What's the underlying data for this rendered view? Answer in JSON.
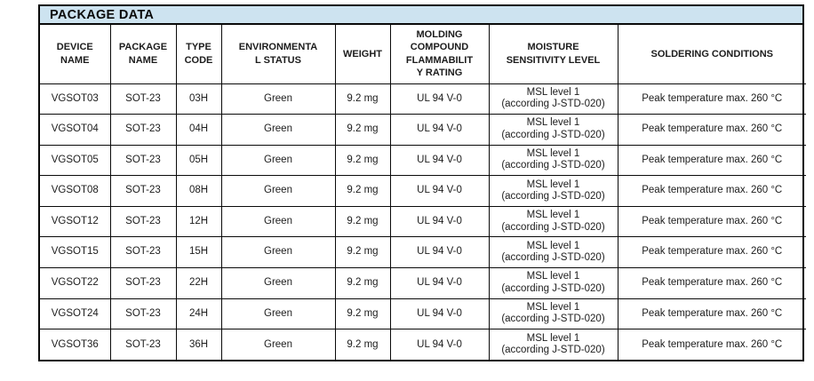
{
  "title": "PACKAGE DATA",
  "table": {
    "columns": [
      {
        "label": "DEVICE\nNAME"
      },
      {
        "label": "PACKAGE\nNAME"
      },
      {
        "label": "TYPE\nCODE"
      },
      {
        "label": "ENVIRONMENTA\nL STATUS"
      },
      {
        "label": "WEIGHT"
      },
      {
        "label": "MOLDING\nCOMPOUND\nFLAMMABILIT\nY RATING"
      },
      {
        "label": "MOISTURE\nSENSITIVITY LEVEL"
      },
      {
        "label": "SOLDERING CONDITIONS"
      }
    ],
    "rows": [
      [
        "VGSOT03",
        "SOT-23",
        "03H",
        "Green",
        "9.2 mg",
        "UL 94 V-0",
        "MSL level 1\n(according J-STD-020)",
        "Peak temperature max. 260 °C"
      ],
      [
        "VGSOT04",
        "SOT-23",
        "04H",
        "Green",
        "9.2 mg",
        "UL 94 V-0",
        "MSL level 1\n(according J-STD-020)",
        "Peak temperature max. 260 °C"
      ],
      [
        "VGSOT05",
        "SOT-23",
        "05H",
        "Green",
        "9.2 mg",
        "UL 94 V-0",
        "MSL level 1\n(according J-STD-020)",
        "Peak temperature max. 260 °C"
      ],
      [
        "VGSOT08",
        "SOT-23",
        "08H",
        "Green",
        "9.2 mg",
        "UL 94 V-0",
        "MSL level 1\n(according J-STD-020)",
        "Peak temperature max. 260 °C"
      ],
      [
        "VGSOT12",
        "SOT-23",
        "12H",
        "Green",
        "9.2 mg",
        "UL 94 V-0",
        "MSL level 1\n(according J-STD-020)",
        "Peak temperature max. 260 °C"
      ],
      [
        "VGSOT15",
        "SOT-23",
        "15H",
        "Green",
        "9.2 mg",
        "UL 94 V-0",
        "MSL level 1\n(according J-STD-020)",
        "Peak temperature max. 260 °C"
      ],
      [
        "VGSOT22",
        "SOT-23",
        "22H",
        "Green",
        "9.2 mg",
        "UL 94 V-0",
        "MSL level 1\n(according J-STD-020)",
        "Peak temperature max. 260 °C"
      ],
      [
        "VGSOT24",
        "SOT-23",
        "24H",
        "Green",
        "9.2 mg",
        "UL 94 V-0",
        "MSL level 1\n(according J-STD-020)",
        "Peak temperature max. 260 °C"
      ],
      [
        "VGSOT36",
        "SOT-23",
        "36H",
        "Green",
        "9.2 mg",
        "UL 94 V-0",
        "MSL level 1\n(according J-STD-020)",
        "Peak temperature max. 260 °C"
      ]
    ]
  },
  "colors": {
    "title_bar_bg": "#cde3f0",
    "border": "#0a0a0a",
    "text": "#1c1c1c"
  }
}
